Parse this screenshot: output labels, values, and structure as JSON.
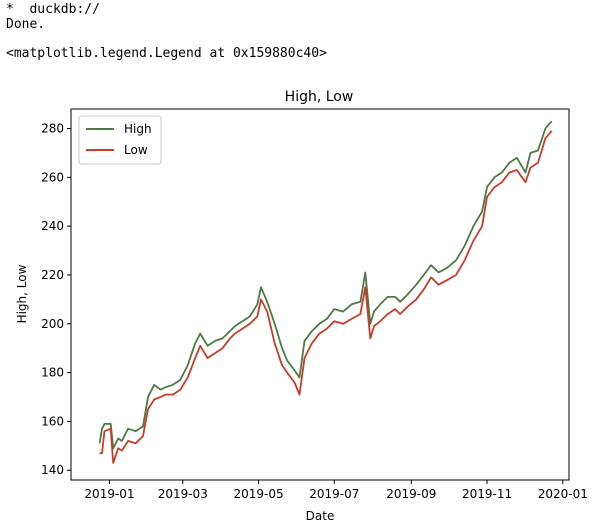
{
  "console": {
    "line1": "*  duckdb://",
    "line2": "Done.",
    "line3": "<matplotlib.legend.Legend at 0x159880c40>"
  },
  "chart_data": {
    "type": "line",
    "title": "High, Low",
    "xlabel": "Date",
    "ylabel": "High, Low",
    "xlim": [
      "2018-12-01",
      "2020-01-06"
    ],
    "ylim": [
      136,
      288
    ],
    "x_ticks": [
      "2019-01",
      "2019-03",
      "2019-05",
      "2019-07",
      "2019-09",
      "2019-11",
      "2020-01"
    ],
    "y_ticks": [
      140,
      160,
      180,
      200,
      220,
      240,
      260,
      280
    ],
    "legend": "upper-left",
    "grid": false,
    "x": [
      "2018-12-24",
      "2018-12-26",
      "2018-12-28",
      "2019-01-02",
      "2019-01-04",
      "2019-01-08",
      "2019-01-11",
      "2019-01-16",
      "2019-01-22",
      "2019-01-28",
      "2019-02-01",
      "2019-02-06",
      "2019-02-11",
      "2019-02-15",
      "2019-02-21",
      "2019-02-27",
      "2019-03-05",
      "2019-03-11",
      "2019-03-15",
      "2019-03-21",
      "2019-03-27",
      "2019-04-02",
      "2019-04-08",
      "2019-04-12",
      "2019-04-18",
      "2019-04-24",
      "2019-04-30",
      "2019-05-03",
      "2019-05-08",
      "2019-05-14",
      "2019-05-20",
      "2019-05-24",
      "2019-05-30",
      "2019-06-03",
      "2019-06-07",
      "2019-06-13",
      "2019-06-19",
      "2019-06-25",
      "2019-07-01",
      "2019-07-08",
      "2019-07-15",
      "2019-07-22",
      "2019-07-26",
      "2019-07-30",
      "2019-08-02",
      "2019-08-07",
      "2019-08-13",
      "2019-08-19",
      "2019-08-23",
      "2019-08-29",
      "2019-09-05",
      "2019-09-11",
      "2019-09-17",
      "2019-09-23",
      "2019-09-30",
      "2019-10-07",
      "2019-10-14",
      "2019-10-21",
      "2019-10-28",
      "2019-11-01",
      "2019-11-07",
      "2019-11-13",
      "2019-11-19",
      "2019-11-25",
      "2019-12-02",
      "2019-12-06",
      "2019-12-12",
      "2019-12-18",
      "2019-12-23"
    ],
    "series": [
      {
        "name": "High",
        "color": "#4c7a43",
        "values": [
          151,
          157,
          159,
          159,
          149,
          153,
          152,
          157,
          156,
          158,
          170,
          175,
          173,
          174,
          175,
          177,
          183,
          192,
          196,
          191,
          193,
          194,
          197,
          199,
          201,
          203,
          208,
          215,
          209,
          200,
          190,
          185,
          181,
          178,
          193,
          197,
          200,
          202,
          206,
          205,
          208,
          209,
          221,
          200,
          205,
          208,
          211,
          211,
          209,
          212,
          216,
          220,
          224,
          221,
          223,
          226,
          232,
          240,
          246,
          256,
          260,
          262,
          266,
          268,
          262,
          270,
          271,
          280,
          283
        ]
      },
      {
        "name": "Low",
        "color": "#c83c28",
        "values": [
          147,
          147,
          156,
          157,
          143,
          149,
          148,
          152,
          151,
          154,
          165,
          169,
          170,
          171,
          171,
          173,
          178,
          186,
          191,
          186,
          188,
          190,
          194,
          196,
          198,
          200,
          203,
          210,
          205,
          192,
          183,
          180,
          176,
          171,
          186,
          192,
          196,
          198,
          201,
          200,
          202,
          204,
          215,
          194,
          199,
          201,
          204,
          206,
          204,
          207,
          210,
          214,
          219,
          216,
          218,
          220,
          226,
          234,
          240,
          252,
          256,
          258,
          262,
          263,
          258,
          264,
          266,
          276,
          279
        ]
      }
    ]
  }
}
